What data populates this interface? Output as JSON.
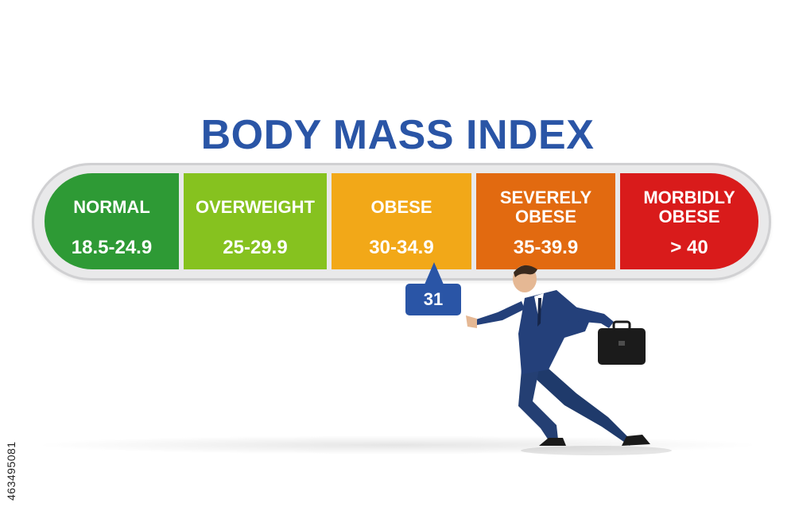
{
  "title": "BODY MASS INDEX",
  "categories": [
    {
      "label": "NORMAL",
      "range": "18.5-24.9",
      "color": "#2e9a35"
    },
    {
      "label": "OVERWEIGHT",
      "range": "25-29.9",
      "color": "#86c21f"
    },
    {
      "label": "OBESE",
      "range": "30-34.9",
      "color": "#f2a818"
    },
    {
      "label": "SEVERELY OBESE",
      "range": "35-39.9",
      "color": "#e26a10"
    },
    {
      "label": "MORBIDLY OBESE",
      "range": "> 40",
      "color": "#d91b1b"
    }
  ],
  "marker": {
    "value": "31",
    "color": "#2a55a6"
  },
  "stock_id": "463495081",
  "figure": {
    "name": "businessman-pushing-icon"
  }
}
